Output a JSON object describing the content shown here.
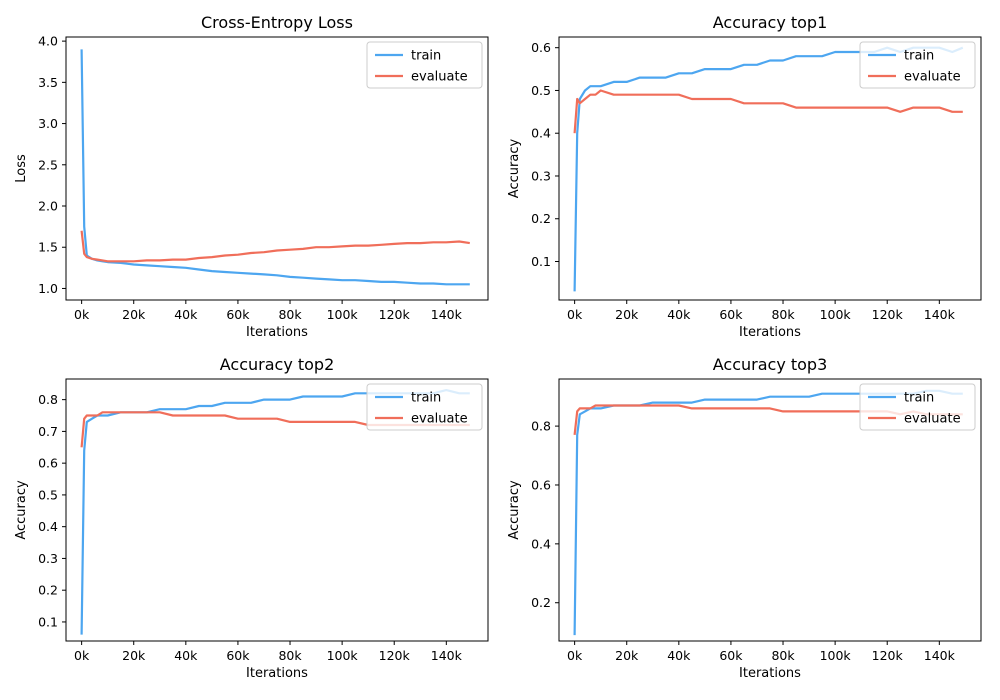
{
  "colors": {
    "train": "#4da6f0",
    "evaluate": "#f06e5a"
  },
  "chart_data": [
    {
      "type": "line",
      "title": "Cross-Entropy Loss",
      "xlabel": "Iterations",
      "ylabel": "Loss",
      "xlim": [
        -6000,
        156000
      ],
      "ylim": [
        0.86,
        4.05
      ],
      "xticks": [
        0,
        20000,
        40000,
        60000,
        80000,
        100000,
        120000,
        140000
      ],
      "xtick_labels": [
        "0k",
        "20k",
        "40k",
        "60k",
        "80k",
        "100k",
        "120k",
        "140k"
      ],
      "yticks": [
        1.0,
        1.5,
        2.0,
        2.5,
        3.0,
        3.5,
        4.0
      ],
      "ytick_labels": [
        "1.0",
        "1.5",
        "2.0",
        "2.5",
        "3.0",
        "3.5",
        "4.0"
      ],
      "legend": "top-right",
      "series": [
        {
          "name": "train",
          "color": "train",
          "x": [
            0,
            1000,
            2000,
            4000,
            6000,
            8000,
            10000,
            15000,
            20000,
            25000,
            30000,
            35000,
            40000,
            45000,
            50000,
            55000,
            60000,
            65000,
            70000,
            75000,
            80000,
            85000,
            90000,
            95000,
            100000,
            105000,
            110000,
            115000,
            120000,
            125000,
            130000,
            135000,
            140000,
            145000,
            149000
          ],
          "y": [
            3.9,
            1.75,
            1.4,
            1.36,
            1.34,
            1.33,
            1.32,
            1.31,
            1.29,
            1.28,
            1.27,
            1.26,
            1.25,
            1.23,
            1.21,
            1.2,
            1.19,
            1.18,
            1.17,
            1.16,
            1.14,
            1.13,
            1.12,
            1.11,
            1.1,
            1.1,
            1.09,
            1.08,
            1.08,
            1.07,
            1.06,
            1.06,
            1.05,
            1.05,
            1.05
          ]
        },
        {
          "name": "evaluate",
          "color": "evaluate",
          "x": [
            0,
            1000,
            2000,
            4000,
            6000,
            8000,
            10000,
            15000,
            20000,
            25000,
            30000,
            35000,
            40000,
            45000,
            50000,
            55000,
            60000,
            65000,
            70000,
            75000,
            80000,
            85000,
            90000,
            95000,
            100000,
            105000,
            110000,
            115000,
            120000,
            125000,
            130000,
            135000,
            140000,
            145000,
            149000
          ],
          "y": [
            1.7,
            1.42,
            1.38,
            1.36,
            1.35,
            1.34,
            1.33,
            1.33,
            1.33,
            1.34,
            1.34,
            1.35,
            1.35,
            1.37,
            1.38,
            1.4,
            1.41,
            1.43,
            1.44,
            1.46,
            1.47,
            1.48,
            1.5,
            1.5,
            1.51,
            1.52,
            1.52,
            1.53,
            1.54,
            1.55,
            1.55,
            1.56,
            1.56,
            1.57,
            1.55
          ]
        }
      ]
    },
    {
      "type": "line",
      "title": "Accuracy top1",
      "xlabel": "Iterations",
      "ylabel": "Accuracy",
      "xlim": [
        -6000,
        156000
      ],
      "ylim": [
        0.01,
        0.625
      ],
      "xticks": [
        0,
        20000,
        40000,
        60000,
        80000,
        100000,
        120000,
        140000
      ],
      "xtick_labels": [
        "0k",
        "20k",
        "40k",
        "60k",
        "80k",
        "100k",
        "120k",
        "140k"
      ],
      "yticks": [
        0.1,
        0.2,
        0.3,
        0.4,
        0.5,
        0.6
      ],
      "ytick_labels": [
        "0.1",
        "0.2",
        "0.3",
        "0.4",
        "0.5",
        "0.6"
      ],
      "legend": "top-right",
      "series": [
        {
          "name": "train",
          "color": "train",
          "x": [
            0,
            1000,
            2000,
            4000,
            6000,
            8000,
            10000,
            15000,
            20000,
            25000,
            30000,
            35000,
            40000,
            45000,
            50000,
            55000,
            60000,
            65000,
            70000,
            75000,
            80000,
            85000,
            90000,
            95000,
            100000,
            105000,
            110000,
            115000,
            120000,
            125000,
            130000,
            135000,
            140000,
            145000,
            149000
          ],
          "y": [
            0.03,
            0.4,
            0.48,
            0.5,
            0.51,
            0.51,
            0.51,
            0.52,
            0.52,
            0.53,
            0.53,
            0.53,
            0.54,
            0.54,
            0.55,
            0.55,
            0.55,
            0.56,
            0.56,
            0.57,
            0.57,
            0.58,
            0.58,
            0.58,
            0.59,
            0.59,
            0.59,
            0.59,
            0.6,
            0.59,
            0.6,
            0.6,
            0.6,
            0.59,
            0.6
          ]
        },
        {
          "name": "evaluate",
          "color": "evaluate",
          "x": [
            0,
            1000,
            2000,
            4000,
            6000,
            8000,
            10000,
            15000,
            20000,
            25000,
            30000,
            35000,
            40000,
            45000,
            50000,
            55000,
            60000,
            65000,
            70000,
            75000,
            80000,
            85000,
            90000,
            95000,
            100000,
            105000,
            110000,
            115000,
            120000,
            125000,
            130000,
            135000,
            140000,
            145000,
            149000
          ],
          "y": [
            0.4,
            0.48,
            0.47,
            0.48,
            0.49,
            0.49,
            0.5,
            0.49,
            0.49,
            0.49,
            0.49,
            0.49,
            0.49,
            0.48,
            0.48,
            0.48,
            0.48,
            0.47,
            0.47,
            0.47,
            0.47,
            0.46,
            0.46,
            0.46,
            0.46,
            0.46,
            0.46,
            0.46,
            0.46,
            0.45,
            0.46,
            0.46,
            0.46,
            0.45,
            0.45
          ]
        }
      ]
    },
    {
      "type": "line",
      "title": "Accuracy top2",
      "xlabel": "Iterations",
      "ylabel": "Accuracy",
      "xlim": [
        -6000,
        156000
      ],
      "ylim": [
        0.04,
        0.865
      ],
      "xticks": [
        0,
        20000,
        40000,
        60000,
        80000,
        100000,
        120000,
        140000
      ],
      "xtick_labels": [
        "0k",
        "20k",
        "40k",
        "60k",
        "80k",
        "100k",
        "120k",
        "140k"
      ],
      "yticks": [
        0.1,
        0.2,
        0.3,
        0.4,
        0.5,
        0.6,
        0.7,
        0.8
      ],
      "ytick_labels": [
        "0.1",
        "0.2",
        "0.3",
        "0.4",
        "0.5",
        "0.6",
        "0.7",
        "0.8"
      ],
      "legend": "top-right",
      "series": [
        {
          "name": "train",
          "color": "train",
          "x": [
            0,
            1000,
            2000,
            4000,
            6000,
            8000,
            10000,
            15000,
            20000,
            25000,
            30000,
            35000,
            40000,
            45000,
            50000,
            55000,
            60000,
            65000,
            70000,
            75000,
            80000,
            85000,
            90000,
            95000,
            100000,
            105000,
            110000,
            115000,
            120000,
            125000,
            130000,
            135000,
            140000,
            145000,
            149000
          ],
          "y": [
            0.06,
            0.64,
            0.73,
            0.74,
            0.75,
            0.75,
            0.75,
            0.76,
            0.76,
            0.76,
            0.77,
            0.77,
            0.77,
            0.78,
            0.78,
            0.79,
            0.79,
            0.79,
            0.8,
            0.8,
            0.8,
            0.81,
            0.81,
            0.81,
            0.81,
            0.82,
            0.82,
            0.82,
            0.82,
            0.82,
            0.82,
            0.82,
            0.83,
            0.82,
            0.82
          ]
        },
        {
          "name": "evaluate",
          "color": "evaluate",
          "x": [
            0,
            1000,
            2000,
            4000,
            6000,
            8000,
            10000,
            15000,
            20000,
            25000,
            30000,
            35000,
            40000,
            45000,
            50000,
            55000,
            60000,
            65000,
            70000,
            75000,
            80000,
            85000,
            90000,
            95000,
            100000,
            105000,
            110000,
            115000,
            120000,
            125000,
            130000,
            135000,
            140000,
            145000,
            149000
          ],
          "y": [
            0.65,
            0.74,
            0.75,
            0.75,
            0.75,
            0.76,
            0.76,
            0.76,
            0.76,
            0.76,
            0.76,
            0.75,
            0.75,
            0.75,
            0.75,
            0.75,
            0.74,
            0.74,
            0.74,
            0.74,
            0.73,
            0.73,
            0.73,
            0.73,
            0.73,
            0.73,
            0.72,
            0.72,
            0.72,
            0.72,
            0.72,
            0.72,
            0.72,
            0.72,
            0.72
          ]
        }
      ]
    },
    {
      "type": "line",
      "title": "Accuracy top3",
      "xlabel": "Iterations",
      "ylabel": "Accuracy",
      "xlim": [
        -6000,
        156000
      ],
      "ylim": [
        0.07,
        0.96
      ],
      "xticks": [
        0,
        20000,
        40000,
        60000,
        80000,
        100000,
        120000,
        140000
      ],
      "xtick_labels": [
        "0k",
        "20k",
        "40k",
        "60k",
        "80k",
        "100k",
        "120k",
        "140k"
      ],
      "yticks": [
        0.2,
        0.4,
        0.6,
        0.8
      ],
      "ytick_labels": [
        "0.2",
        "0.4",
        "0.6",
        "0.8"
      ],
      "legend": "top-right",
      "series": [
        {
          "name": "train",
          "color": "train",
          "x": [
            0,
            1000,
            2000,
            4000,
            6000,
            8000,
            10000,
            15000,
            20000,
            25000,
            30000,
            35000,
            40000,
            45000,
            50000,
            55000,
            60000,
            65000,
            70000,
            75000,
            80000,
            85000,
            90000,
            95000,
            100000,
            105000,
            110000,
            115000,
            120000,
            125000,
            130000,
            135000,
            140000,
            145000,
            149000
          ],
          "y": [
            0.09,
            0.77,
            0.84,
            0.85,
            0.86,
            0.86,
            0.86,
            0.87,
            0.87,
            0.87,
            0.88,
            0.88,
            0.88,
            0.88,
            0.89,
            0.89,
            0.89,
            0.89,
            0.89,
            0.9,
            0.9,
            0.9,
            0.9,
            0.91,
            0.91,
            0.91,
            0.91,
            0.91,
            0.91,
            0.91,
            0.91,
            0.92,
            0.92,
            0.91,
            0.91
          ]
        },
        {
          "name": "evaluate",
          "color": "evaluate",
          "x": [
            0,
            1000,
            2000,
            4000,
            6000,
            8000,
            10000,
            15000,
            20000,
            25000,
            30000,
            35000,
            40000,
            45000,
            50000,
            55000,
            60000,
            65000,
            70000,
            75000,
            80000,
            85000,
            90000,
            95000,
            100000,
            105000,
            110000,
            115000,
            120000,
            125000,
            130000,
            135000,
            140000,
            145000,
            149000
          ],
          "y": [
            0.77,
            0.85,
            0.86,
            0.86,
            0.86,
            0.87,
            0.87,
            0.87,
            0.87,
            0.87,
            0.87,
            0.87,
            0.87,
            0.86,
            0.86,
            0.86,
            0.86,
            0.86,
            0.86,
            0.86,
            0.85,
            0.85,
            0.85,
            0.85,
            0.85,
            0.85,
            0.85,
            0.85,
            0.85,
            0.84,
            0.85,
            0.84,
            0.84,
            0.84,
            0.84
          ]
        }
      ]
    }
  ]
}
